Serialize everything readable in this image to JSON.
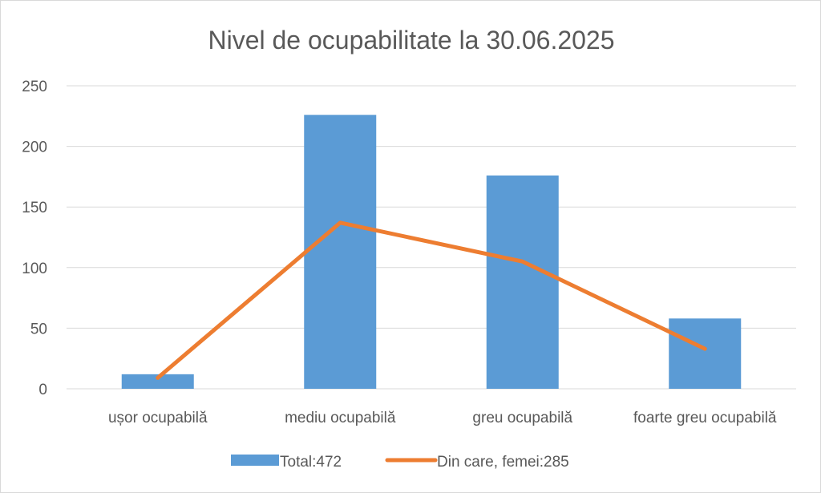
{
  "chart_data": {
    "type": "bar",
    "title": "Nivel de ocupabilitate la 30.06.2025",
    "xlabel": "",
    "ylabel": "",
    "categories": [
      "ușor ocupabilă",
      "mediu ocupabilă",
      "greu ocupabilă",
      "foarte greu ocupabilă"
    ],
    "ylim": [
      0,
      250
    ],
    "yticks": [
      0,
      50,
      100,
      150,
      200,
      250
    ],
    "grid": true,
    "legend_position": "bottom",
    "series": [
      {
        "name": "Total:472",
        "kind": "bar",
        "color": "#5b9bd5",
        "values": [
          12,
          226,
          176,
          58
        ]
      },
      {
        "name": "Din care, femei:285",
        "kind": "line",
        "color": "#ed7d31",
        "values": [
          9,
          137,
          105,
          33
        ]
      }
    ]
  }
}
